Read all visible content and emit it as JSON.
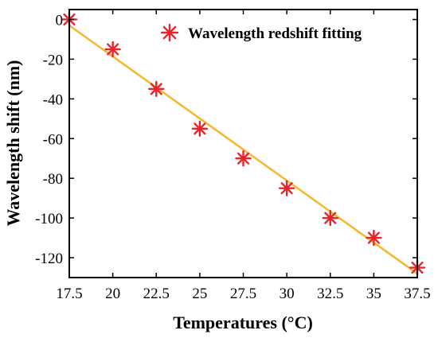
{
  "chart_data": {
    "type": "scatter",
    "title": "",
    "xlabel": "Temperatures (°C)",
    "ylabel": "Wavelength shift (nm)",
    "xlim": [
      17.5,
      37.5
    ],
    "ylim": [
      -130,
      5
    ],
    "x_ticks": [
      17.5,
      20,
      22.5,
      25,
      27.5,
      30,
      32.5,
      35,
      37.5
    ],
    "x_tick_labels": [
      "17.5",
      "20",
      "22.5",
      "25",
      "27.5",
      "30",
      "32.5",
      "35",
      "37.5"
    ],
    "y_ticks": [
      0,
      -20,
      -40,
      -60,
      -80,
      -100,
      -120
    ],
    "y_tick_labels": [
      "0",
      "-20",
      "-40",
      "-60",
      "-80",
      "-100",
      "-120"
    ],
    "grid": false,
    "legend_position": "top-right",
    "series": [
      {
        "name": "Wavelength redshift fitting",
        "marker": "asterisk",
        "color": "#e8242a",
        "x": [
          17.5,
          20,
          22.5,
          25,
          27.5,
          30,
          32.5,
          35,
          37.5
        ],
        "y": [
          0,
          -15,
          -35,
          -55,
          -70,
          -85,
          -100,
          -110,
          -125
        ]
      }
    ],
    "fit_line": {
      "color": "#f5b829",
      "x": [
        17.5,
        37.5
      ],
      "y": [
        -3,
        -128
      ]
    }
  }
}
